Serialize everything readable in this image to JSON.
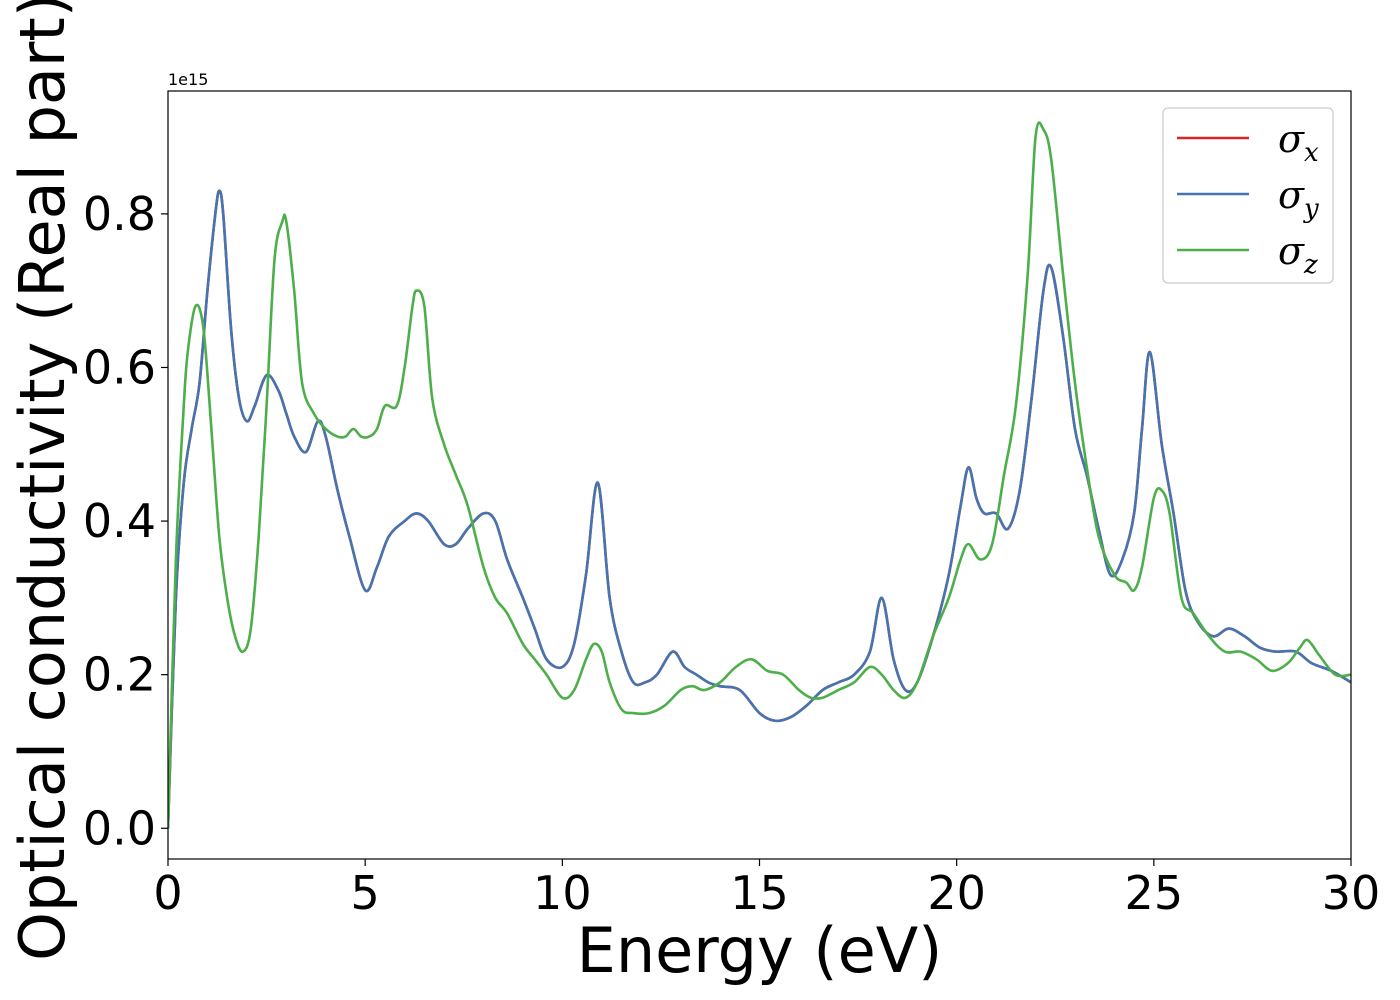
{
  "chart_data": {
    "type": "line",
    "xlabel": "Energy (eV)",
    "ylabel": "Optical conductivity (Real part)",
    "y_offset_label": "1e15",
    "xlim": [
      0,
      30
    ],
    "ylim": [
      -0.04,
      0.96
    ],
    "xticks": [
      0,
      5,
      10,
      15,
      20,
      25,
      30
    ],
    "xtick_labels": [
      "0",
      "5",
      "10",
      "15",
      "20",
      "25",
      "30"
    ],
    "yticks": [
      0.0,
      0.2,
      0.4,
      0.6,
      0.8
    ],
    "ytick_labels": [
      "0.0",
      "0.2",
      "0.4",
      "0.6",
      "0.8"
    ],
    "legend_position": "upper right",
    "grid": false,
    "series": [
      {
        "name": "σx",
        "symbol": "σ",
        "sub": "x",
        "color": "#d62728",
        "x": [
          0,
          0.2,
          0.4,
          0.6,
          0.8,
          1.0,
          1.2,
          1.3,
          1.4,
          1.6,
          1.8,
          2.0,
          2.2,
          2.5,
          2.8,
          3.0,
          3.2,
          3.5,
          3.8,
          4.0,
          4.3,
          4.6,
          5.0,
          5.3,
          5.6,
          6.0,
          6.3,
          6.6,
          7.0,
          7.3,
          7.6,
          8.0,
          8.3,
          8.6,
          9.0,
          9.3,
          9.6,
          10.0,
          10.3,
          10.6,
          10.9,
          11.2,
          11.5,
          11.8,
          12.1,
          12.4,
          12.8,
          13.1,
          13.4,
          13.7,
          14.0,
          14.5,
          15.0,
          15.4,
          15.8,
          16.2,
          16.6,
          17.0,
          17.4,
          17.8,
          18.1,
          18.4,
          18.7,
          19.0,
          19.4,
          19.8,
          20.1,
          20.3,
          20.5,
          20.7,
          21.0,
          21.3,
          21.6,
          21.9,
          22.2,
          22.4,
          22.7,
          23.0,
          23.3,
          23.6,
          23.9,
          24.2,
          24.5,
          24.7,
          24.9,
          25.2,
          25.5,
          25.8,
          26.1,
          26.5,
          26.9,
          27.3,
          27.7,
          28.1,
          28.6,
          29.0,
          29.5,
          30.0
        ],
        "y": [
          0.0,
          0.3,
          0.45,
          0.52,
          0.58,
          0.7,
          0.8,
          0.83,
          0.8,
          0.65,
          0.56,
          0.53,
          0.55,
          0.59,
          0.57,
          0.54,
          0.51,
          0.49,
          0.53,
          0.51,
          0.44,
          0.38,
          0.31,
          0.34,
          0.38,
          0.4,
          0.41,
          0.4,
          0.37,
          0.37,
          0.39,
          0.41,
          0.4,
          0.35,
          0.3,
          0.26,
          0.22,
          0.21,
          0.24,
          0.33,
          0.45,
          0.3,
          0.23,
          0.19,
          0.19,
          0.2,
          0.23,
          0.21,
          0.2,
          0.19,
          0.185,
          0.18,
          0.15,
          0.14,
          0.145,
          0.16,
          0.18,
          0.19,
          0.2,
          0.23,
          0.3,
          0.22,
          0.18,
          0.19,
          0.25,
          0.33,
          0.42,
          0.47,
          0.43,
          0.41,
          0.41,
          0.39,
          0.44,
          0.56,
          0.7,
          0.73,
          0.64,
          0.52,
          0.46,
          0.39,
          0.33,
          0.35,
          0.41,
          0.52,
          0.62,
          0.5,
          0.41,
          0.31,
          0.27,
          0.25,
          0.26,
          0.25,
          0.235,
          0.23,
          0.23,
          0.215,
          0.205,
          0.19
        ]
      },
      {
        "name": "σy",
        "symbol": "σ",
        "sub": "y",
        "color": "#4575b0",
        "x": [
          0,
          0.2,
          0.4,
          0.6,
          0.8,
          1.0,
          1.2,
          1.3,
          1.4,
          1.6,
          1.8,
          2.0,
          2.2,
          2.5,
          2.8,
          3.0,
          3.2,
          3.5,
          3.8,
          4.0,
          4.3,
          4.6,
          5.0,
          5.3,
          5.6,
          6.0,
          6.3,
          6.6,
          7.0,
          7.3,
          7.6,
          8.0,
          8.3,
          8.6,
          9.0,
          9.3,
          9.6,
          10.0,
          10.3,
          10.6,
          10.9,
          11.2,
          11.5,
          11.8,
          12.1,
          12.4,
          12.8,
          13.1,
          13.4,
          13.7,
          14.0,
          14.5,
          15.0,
          15.4,
          15.8,
          16.2,
          16.6,
          17.0,
          17.4,
          17.8,
          18.1,
          18.4,
          18.7,
          19.0,
          19.4,
          19.8,
          20.1,
          20.3,
          20.5,
          20.7,
          21.0,
          21.3,
          21.6,
          21.9,
          22.2,
          22.4,
          22.7,
          23.0,
          23.3,
          23.6,
          23.9,
          24.2,
          24.5,
          24.7,
          24.9,
          25.2,
          25.5,
          25.8,
          26.1,
          26.5,
          26.9,
          27.3,
          27.7,
          28.1,
          28.6,
          29.0,
          29.5,
          30.0
        ],
        "y": [
          0.0,
          0.3,
          0.45,
          0.52,
          0.58,
          0.7,
          0.8,
          0.83,
          0.8,
          0.65,
          0.56,
          0.53,
          0.55,
          0.59,
          0.57,
          0.54,
          0.51,
          0.49,
          0.53,
          0.51,
          0.44,
          0.38,
          0.31,
          0.34,
          0.38,
          0.4,
          0.41,
          0.4,
          0.37,
          0.37,
          0.39,
          0.41,
          0.4,
          0.35,
          0.3,
          0.26,
          0.22,
          0.21,
          0.24,
          0.33,
          0.45,
          0.3,
          0.23,
          0.19,
          0.19,
          0.2,
          0.23,
          0.21,
          0.2,
          0.19,
          0.185,
          0.18,
          0.15,
          0.14,
          0.145,
          0.16,
          0.18,
          0.19,
          0.2,
          0.23,
          0.3,
          0.22,
          0.18,
          0.19,
          0.25,
          0.33,
          0.42,
          0.47,
          0.43,
          0.41,
          0.41,
          0.39,
          0.44,
          0.56,
          0.7,
          0.73,
          0.64,
          0.52,
          0.46,
          0.39,
          0.33,
          0.35,
          0.41,
          0.52,
          0.62,
          0.5,
          0.41,
          0.31,
          0.27,
          0.25,
          0.26,
          0.25,
          0.235,
          0.23,
          0.23,
          0.215,
          0.205,
          0.19
        ]
      },
      {
        "name": "σz",
        "symbol": "σ",
        "sub": "z",
        "color": "#4daf4a",
        "x": [
          0,
          0.2,
          0.4,
          0.5,
          0.7,
          0.9,
          1.1,
          1.3,
          1.5,
          1.7,
          1.9,
          2.1,
          2.3,
          2.5,
          2.7,
          2.9,
          3.0,
          3.2,
          3.4,
          3.7,
          4.0,
          4.3,
          4.5,
          4.7,
          4.9,
          5.1,
          5.3,
          5.5,
          5.8,
          6.0,
          6.2,
          6.3,
          6.5,
          6.7,
          7.0,
          7.3,
          7.6,
          8.0,
          8.3,
          8.6,
          9.0,
          9.3,
          9.6,
          10.0,
          10.3,
          10.6,
          10.8,
          11.0,
          11.2,
          11.5,
          11.8,
          12.2,
          12.6,
          13.0,
          13.3,
          13.6,
          14.0,
          14.4,
          14.8,
          15.2,
          15.6,
          16.0,
          16.3,
          16.6,
          17.0,
          17.4,
          17.8,
          18.1,
          18.4,
          18.7,
          19.0,
          19.4,
          19.8,
          20.1,
          20.3,
          20.6,
          20.9,
          21.2,
          21.5,
          21.8,
          22.0,
          22.2,
          22.4,
          22.7,
          23.0,
          23.3,
          23.6,
          24.0,
          24.3,
          24.5,
          24.7,
          25.0,
          25.2,
          25.4,
          25.7,
          26.0,
          26.4,
          26.8,
          27.2,
          27.6,
          28.0,
          28.4,
          28.7,
          28.9,
          29.2,
          29.6,
          30.0
        ],
        "y": [
          0.0,
          0.35,
          0.55,
          0.62,
          0.68,
          0.65,
          0.52,
          0.38,
          0.3,
          0.25,
          0.23,
          0.26,
          0.38,
          0.55,
          0.74,
          0.79,
          0.79,
          0.7,
          0.58,
          0.54,
          0.52,
          0.51,
          0.51,
          0.52,
          0.51,
          0.51,
          0.52,
          0.55,
          0.55,
          0.6,
          0.68,
          0.7,
          0.68,
          0.56,
          0.5,
          0.46,
          0.42,
          0.34,
          0.3,
          0.28,
          0.24,
          0.22,
          0.2,
          0.17,
          0.18,
          0.22,
          0.24,
          0.23,
          0.19,
          0.155,
          0.15,
          0.15,
          0.16,
          0.18,
          0.185,
          0.18,
          0.19,
          0.21,
          0.22,
          0.205,
          0.2,
          0.18,
          0.17,
          0.17,
          0.18,
          0.19,
          0.21,
          0.2,
          0.18,
          0.17,
          0.19,
          0.25,
          0.3,
          0.35,
          0.37,
          0.35,
          0.37,
          0.46,
          0.55,
          0.72,
          0.9,
          0.91,
          0.87,
          0.72,
          0.58,
          0.47,
          0.38,
          0.33,
          0.32,
          0.31,
          0.34,
          0.43,
          0.44,
          0.41,
          0.3,
          0.28,
          0.25,
          0.23,
          0.23,
          0.22,
          0.205,
          0.215,
          0.235,
          0.245,
          0.225,
          0.2,
          0.2
        ]
      }
    ]
  }
}
